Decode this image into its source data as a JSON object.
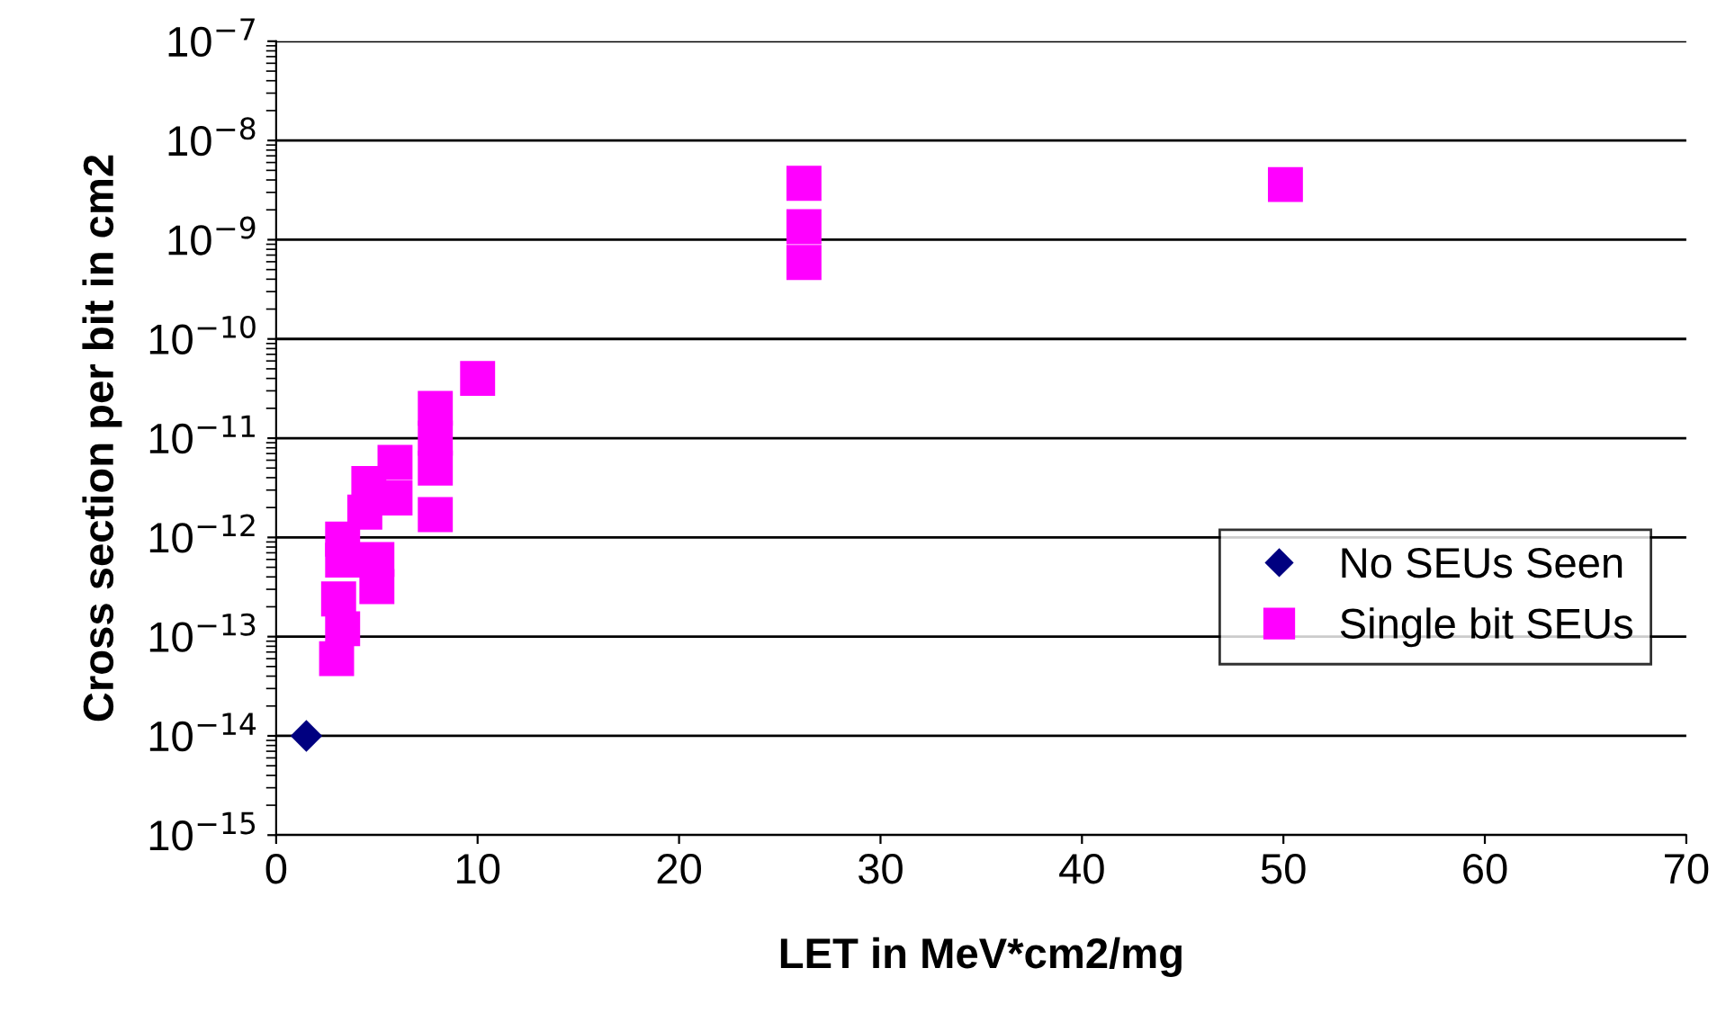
{
  "chart_data": {
    "type": "scatter",
    "xlabel": "LET in MeV*cm2/mg",
    "ylabel": "Cross section per bit in cm2",
    "log": "y",
    "grid": "y",
    "legend": "right",
    "xlim": [
      0,
      70
    ],
    "xticks": [
      0,
      10,
      20,
      30,
      40,
      50,
      60,
      70
    ],
    "ylim": [
      1e-15,
      1e-07
    ],
    "yticks": [
      {
        "value": 1e-15,
        "label": "10$^{−15}$"
      },
      {
        "value": 1e-14,
        "label": "10$^{−14}$"
      },
      {
        "value": 1e-13,
        "label": "10$^{−13}$"
      },
      {
        "value": 1e-12,
        "label": "10$^{−12}$"
      },
      {
        "value": 1e-11,
        "label": "10$^{−11}$"
      },
      {
        "value": 1e-10,
        "label": "10$^{−10}$"
      },
      {
        "value": 1e-09,
        "label": "10$^{−9}$"
      },
      {
        "value": 1e-08,
        "label": "10$^{−8}$"
      },
      {
        "value": 1e-07,
        "label": "10$^{−7}$"
      }
    ],
    "series": [
      {
        "name": "No SEUs Seen",
        "color": "#000080",
        "marker": "diamond",
        "x": [
          1.5
        ],
        "values": [
          1e-14
        ]
      },
      {
        "name": "Single bit SEUs",
        "color": "#ff00ff",
        "marker": "square",
        "x": [
          10.0,
          7.9,
          7.9,
          7.9,
          7.9,
          5.9,
          5.9,
          4.6,
          4.4,
          5.0,
          5.0,
          3.3,
          3.3,
          3.1,
          3.3,
          3.0,
          26.2,
          26.2,
          26.2,
          50.1
        ],
        "values": [
          4e-11,
          2e-11,
          1e-11,
          5e-12,
          1.7e-12,
          5.7e-12,
          2.5e-12,
          3.5e-12,
          1.8e-12,
          6e-13,
          3.2e-13,
          9.6e-13,
          5.9e-13,
          2.4e-13,
          1.2e-13,
          6e-14,
          3.7e-09,
          1.35e-09,
          5.9e-10,
          3.6e-09
        ]
      }
    ]
  }
}
